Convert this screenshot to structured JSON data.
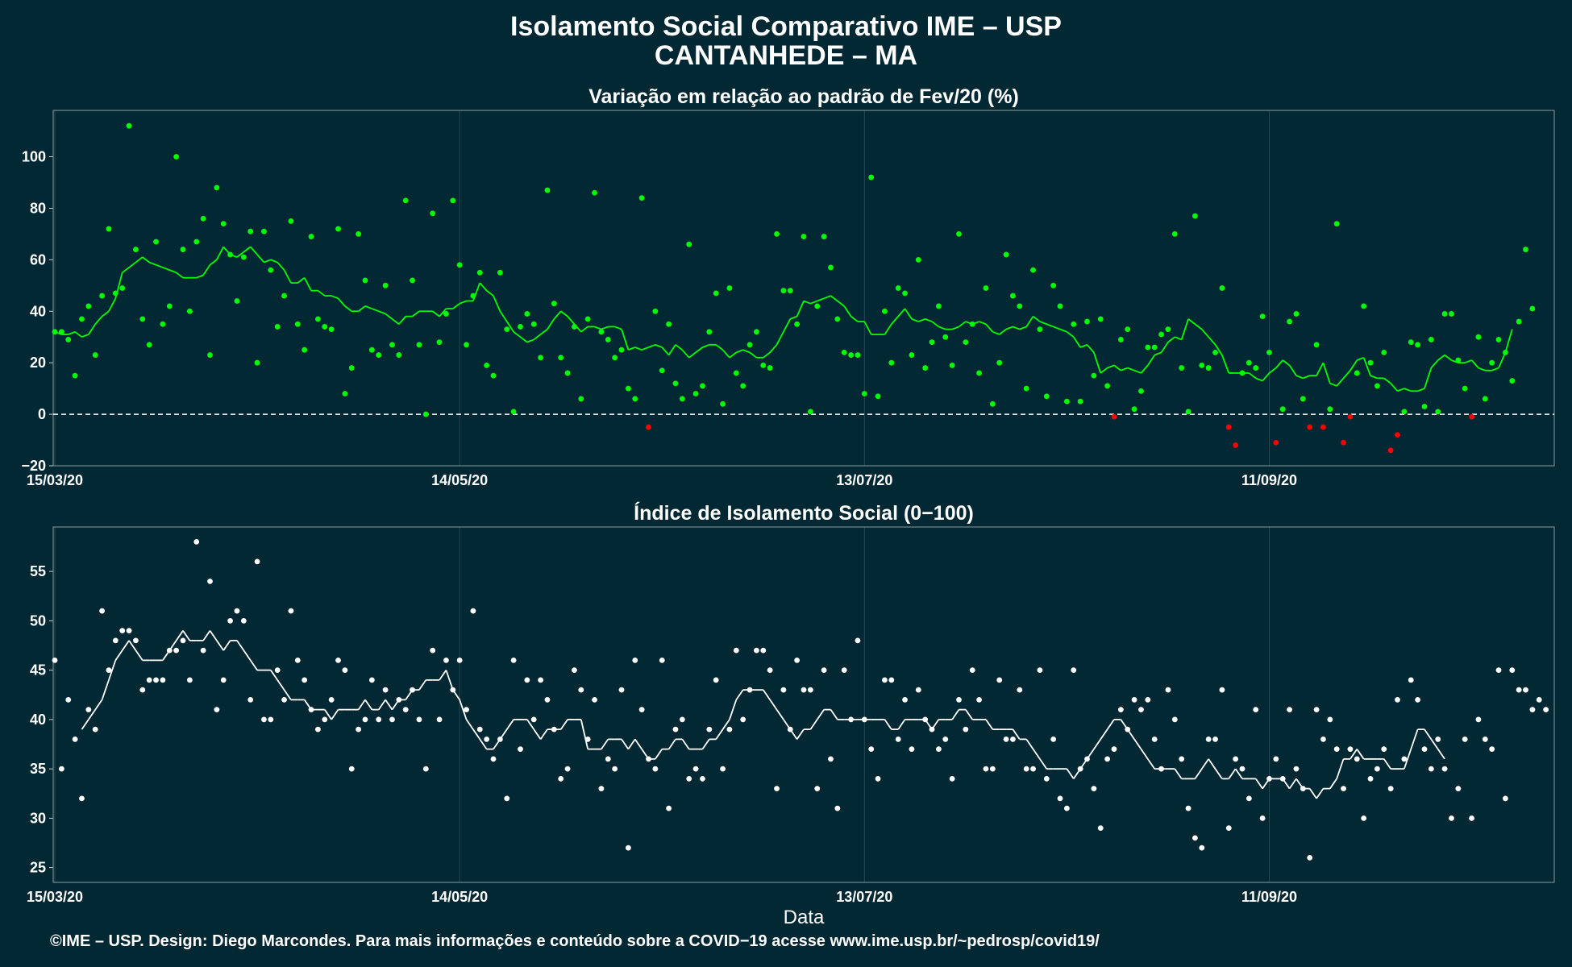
{
  "header": {
    "title": "Isolamento Social Comparativo IME – USP",
    "subtitle": "CANTANHEDE – MA"
  },
  "footer": {
    "credit": "©IME – USP. Design: Diego Marcondes. Para mais informações e conteúdo sobre a COVID−19 acesse www.ime.usp.br/~pedrosp/covid19/"
  },
  "colors": {
    "background": "#022833",
    "positive": "#00ff00",
    "negative": "#ff0000",
    "index": "#ffffff"
  },
  "chart_data": [
    {
      "type": "scatter",
      "title": "Variação em relação ao padrão de Fev/20 (%)",
      "xlabel": "",
      "ylabel": "",
      "x_start": "15/03/20",
      "x_range_days": [
        0,
        222
      ],
      "ylim": [
        -20,
        118
      ],
      "yticks": [
        -20,
        0,
        20,
        40,
        60,
        80,
        100
      ],
      "xticks": [
        {
          "day": 0,
          "label": "15/03/20"
        },
        {
          "day": 60,
          "label": "14/05/20"
        },
        {
          "day": 120,
          "label": "13/07/20"
        },
        {
          "day": 180,
          "label": "11/09/20"
        }
      ],
      "reference_line": 0,
      "points_y": [
        32,
        32,
        29,
        15,
        37,
        42,
        23,
        46,
        72,
        47,
        49,
        112,
        64,
        37,
        27,
        67,
        35,
        42,
        100,
        64,
        40,
        67,
        76,
        23,
        88,
        74,
        62,
        44,
        61,
        71,
        20,
        71,
        56,
        34,
        46,
        75,
        35,
        25,
        69,
        37,
        34,
        33,
        72,
        8,
        18,
        70,
        52,
        25,
        23,
        50,
        27,
        23,
        83,
        52,
        27,
        0,
        78,
        28,
        39,
        83,
        58,
        27,
        46,
        55,
        19,
        15,
        55,
        33,
        1,
        34,
        39,
        35,
        22,
        87,
        43,
        22,
        16,
        34,
        6,
        37,
        86,
        32,
        29,
        22,
        25,
        10,
        6,
        84,
        -5,
        40,
        17,
        35,
        12,
        6,
        66,
        8,
        11,
        32,
        47,
        4,
        49,
        16,
        11,
        27,
        32,
        19,
        18,
        70,
        48,
        48,
        35,
        69,
        1,
        42,
        69,
        57,
        37,
        24,
        23,
        23,
        8,
        92,
        7,
        40,
        20,
        49,
        47,
        23,
        60,
        18,
        28,
        42,
        30,
        19,
        70,
        28,
        35,
        16,
        49,
        4,
        20,
        62,
        46,
        42,
        10,
        56,
        33,
        7,
        50,
        42,
        5,
        35,
        5,
        36,
        15,
        37,
        11,
        -1,
        29,
        33,
        2,
        9,
        26,
        26,
        31,
        33,
        70,
        18,
        1,
        77,
        19,
        18,
        24,
        49,
        -5,
        -12,
        16,
        20,
        18,
        38,
        24,
        -11,
        2,
        36,
        39,
        6,
        -5,
        27,
        -5,
        2,
        74,
        -11,
        -1,
        16,
        42,
        20,
        11,
        24,
        -14,
        -8,
        1,
        28,
        27,
        3,
        29,
        1,
        39,
        39,
        21,
        10,
        -1,
        30,
        6,
        20,
        29,
        24,
        13,
        36,
        64,
        41
      ],
      "series": [
        {
          "name": "",
          "values": [
            32,
            31,
            31,
            32,
            30,
            31,
            35,
            38,
            40,
            45,
            55,
            57,
            59,
            61,
            59,
            58,
            57,
            56,
            55,
            53,
            53,
            53,
            54,
            58,
            60,
            65,
            62,
            61,
            63,
            65,
            62,
            59,
            60,
            59,
            56,
            51,
            51,
            53,
            48,
            48,
            46,
            46,
            45,
            42,
            40,
            40,
            42,
            41,
            40,
            39,
            37,
            35,
            38,
            38,
            40,
            40,
            40,
            38,
            41,
            41,
            43,
            44,
            44,
            51,
            48,
            46,
            40,
            36,
            32,
            30,
            28,
            29,
            31,
            33,
            37,
            40,
            38,
            35,
            32,
            34,
            34,
            33,
            34,
            34,
            33,
            25,
            26,
            25,
            26,
            27,
            26,
            23,
            27,
            25,
            22,
            24,
            26,
            27,
            27,
            25,
            22,
            24,
            25,
            24,
            22,
            22,
            24,
            27,
            32,
            37,
            38,
            44,
            43,
            44,
            45,
            46,
            44,
            42,
            38,
            36,
            36,
            31,
            31,
            31,
            35,
            38,
            41,
            37,
            36,
            37,
            36,
            34,
            33,
            33,
            34,
            36,
            35,
            36,
            35,
            32,
            31,
            33,
            34,
            33,
            34,
            38,
            36,
            35,
            34,
            33,
            32,
            30,
            26,
            27,
            24,
            16,
            18,
            19,
            17,
            18,
            17,
            16,
            19,
            23,
            24,
            28,
            30,
            29,
            37,
            35,
            33,
            30,
            27,
            23,
            16,
            16,
            16,
            16,
            14,
            13,
            16,
            18,
            21,
            19,
            15,
            14,
            15,
            15,
            20,
            12,
            11,
            14,
            17,
            21,
            22,
            15,
            14,
            14,
            12,
            9,
            10,
            9,
            9,
            10,
            18,
            21,
            23,
            21,
            20,
            20,
            21,
            18,
            17,
            17,
            18,
            24,
            33
          ]
        }
      ]
    },
    {
      "type": "scatter",
      "title": "Índice de Isolamento Social (0−100)",
      "xlabel": "Data",
      "ylabel": "",
      "x_start": "15/03/20",
      "x_range_days": [
        0,
        222
      ],
      "ylim": [
        23.5,
        59.5
      ],
      "yticks": [
        25,
        30,
        35,
        40,
        45,
        50,
        55
      ],
      "xticks": [
        {
          "day": 0,
          "label": "15/03/20"
        },
        {
          "day": 60,
          "label": "14/05/20"
        },
        {
          "day": 120,
          "label": "13/07/20"
        },
        {
          "day": 180,
          "label": "11/09/20"
        }
      ],
      "points_y": [
        46,
        35,
        42,
        38,
        32,
        41,
        39,
        51,
        45,
        48,
        49,
        49,
        48,
        43,
        44,
        44,
        44,
        47,
        47,
        48,
        44,
        58,
        47,
        54,
        41,
        44,
        50,
        51,
        50,
        42,
        56,
        40,
        40,
        45,
        42,
        51,
        46,
        44,
        41,
        39,
        40,
        42,
        46,
        45,
        35,
        39,
        40,
        44,
        40,
        43,
        40,
        42,
        41,
        43,
        40,
        35,
        47,
        40,
        46,
        43,
        46,
        41,
        51,
        39,
        38,
        36,
        38,
        32,
        46,
        37,
        44,
        40,
        44,
        42,
        39,
        34,
        35,
        45,
        43,
        38,
        42,
        33,
        36,
        35,
        43,
        27,
        46,
        41,
        36,
        35,
        46,
        31,
        39,
        40,
        34,
        35,
        34,
        39,
        44,
        35,
        39,
        47,
        40,
        43,
        47,
        47,
        45,
        33,
        43,
        39,
        46,
        43,
        43,
        33,
        45,
        36,
        31,
        45,
        40,
        48,
        40,
        37,
        34,
        44,
        44,
        38,
        42,
        37,
        43,
        40,
        39,
        37,
        38,
        34,
        42,
        39,
        45,
        42,
        35,
        35,
        44,
        38,
        38,
        43,
        35,
        35,
        45,
        34,
        38,
        32,
        31,
        45,
        35,
        36,
        33,
        29,
        36,
        37,
        41,
        39,
        42,
        41,
        42,
        38,
        35,
        43,
        40,
        36,
        31,
        28,
        27,
        38,
        38,
        43,
        29,
        36,
        35,
        32,
        41,
        30,
        34,
        36,
        34,
        41,
        35,
        33,
        26,
        41,
        38,
        40,
        37,
        33,
        37,
        36,
        30,
        34,
        35,
        37,
        33,
        42,
        36,
        44,
        42,
        37,
        35,
        38,
        35,
        30,
        33,
        38,
        30,
        40,
        38,
        37,
        45,
        32,
        45,
        43,
        43,
        41,
        42,
        41
      ],
      "series": [
        {
          "name": "",
          "values": [
            null,
            null,
            null,
            null,
            39,
            40,
            41,
            42,
            44,
            46,
            47,
            48,
            47,
            46,
            46,
            46,
            46,
            47,
            48,
            49,
            48,
            48,
            48,
            49,
            48,
            47,
            48,
            48,
            47,
            46,
            45,
            45,
            45,
            44,
            43,
            42,
            42,
            42,
            41,
            41,
            41,
            40,
            41,
            41,
            41,
            41,
            42,
            41,
            41,
            42,
            41,
            42,
            42,
            43,
            43,
            44,
            44,
            44,
            45,
            43,
            42,
            40,
            39,
            38,
            37,
            37,
            38,
            39,
            40,
            40,
            40,
            39,
            38,
            39,
            39,
            39,
            40,
            40,
            40,
            37,
            37,
            37,
            38,
            38,
            38,
            37,
            38,
            37,
            36,
            36,
            37,
            37,
            38,
            38,
            37,
            37,
            37,
            38,
            38,
            39,
            40,
            42,
            43,
            43,
            43,
            43,
            42,
            41,
            40,
            39,
            38,
            39,
            39,
            40,
            41,
            41,
            40,
            40,
            40,
            40,
            40,
            40,
            40,
            40,
            39,
            39,
            40,
            40,
            40,
            40,
            39,
            40,
            40,
            40,
            41,
            41,
            40,
            40,
            40,
            39,
            39,
            39,
            39,
            38,
            38,
            37,
            36,
            35,
            35,
            35,
            35,
            34,
            35,
            36,
            37,
            38,
            39,
            40,
            40,
            39,
            38,
            37,
            36,
            35,
            35,
            35,
            35,
            34,
            34,
            34,
            35,
            36,
            35,
            34,
            34,
            35,
            34,
            34,
            34,
            33,
            34,
            34,
            34,
            33,
            34,
            33,
            33,
            32,
            33,
            33,
            34,
            36,
            36,
            37,
            36,
            36,
            36,
            36,
            35,
            35,
            35,
            37,
            39,
            39,
            38,
            37,
            36
          ]
        }
      ]
    }
  ]
}
